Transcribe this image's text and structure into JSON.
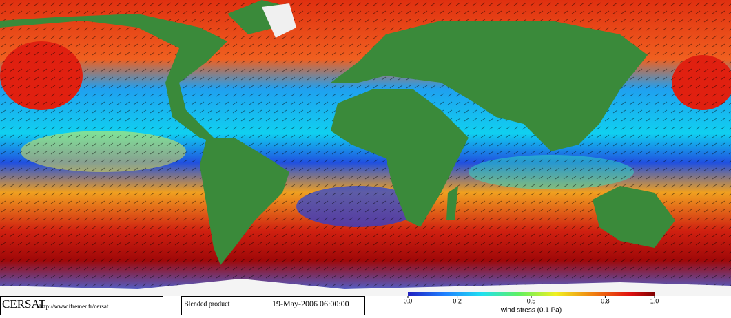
{
  "footer": {
    "logo": "CERSAT",
    "url": "http://www.ifremer.fr/cersat",
    "product": "Blended product",
    "date": "19-May-2006 06:00:00"
  },
  "colorbar": {
    "lim": [
      0,
      1
    ],
    "ticks": [
      {
        "value": 0,
        "label": "0.0"
      },
      0.2,
      0.5,
      0.8,
      {
        "value": 1,
        "label": "1.0"
      }
    ],
    "label": "wind stress (0.1 Pa)"
  }
}
